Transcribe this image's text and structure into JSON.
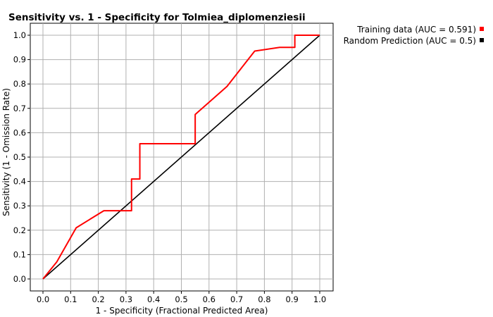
{
  "chart_data": {
    "type": "line",
    "title": "Sensitivity vs. 1 - Specificity for Tolmiea_diplomenziesii",
    "xlabel": "1 - Specificity  (Fractional Predicted Area)",
    "ylabel": "Sensitivity  (1 - Omission Rate)",
    "xlim": [
      0,
      1
    ],
    "ylim": [
      0,
      1
    ],
    "x_ticks": [
      "0.0",
      "0.1",
      "0.2",
      "0.3",
      "0.4",
      "0.5",
      "0.6",
      "0.7",
      "0.8",
      "0.9",
      "1.0"
    ],
    "y_ticks": [
      "0.0",
      "0.1",
      "0.2",
      "0.3",
      "0.4",
      "0.5",
      "0.6",
      "0.7",
      "0.8",
      "0.9",
      "1.0"
    ],
    "grid": true,
    "legend_position": "top-right",
    "series": [
      {
        "name": "Training data (AUC = 0.591)",
        "color": "#ff0000",
        "points": [
          [
            0.0,
            0.0
          ],
          [
            0.05,
            0.07
          ],
          [
            0.12,
            0.21
          ],
          [
            0.22,
            0.28
          ],
          [
            0.32,
            0.28
          ],
          [
            0.32,
            0.41
          ],
          [
            0.35,
            0.41
          ],
          [
            0.35,
            0.555
          ],
          [
            0.55,
            0.555
          ],
          [
            0.55,
            0.675
          ],
          [
            0.665,
            0.79
          ],
          [
            0.765,
            0.935
          ],
          [
            0.855,
            0.95
          ],
          [
            0.91,
            0.95
          ],
          [
            0.91,
            1.0
          ],
          [
            1.0,
            1.0
          ]
        ]
      },
      {
        "name": "Random Prediction (AUC = 0.5)",
        "color": "#000000",
        "points": [
          [
            0.0,
            0.0
          ],
          [
            1.0,
            1.0
          ]
        ]
      }
    ]
  }
}
